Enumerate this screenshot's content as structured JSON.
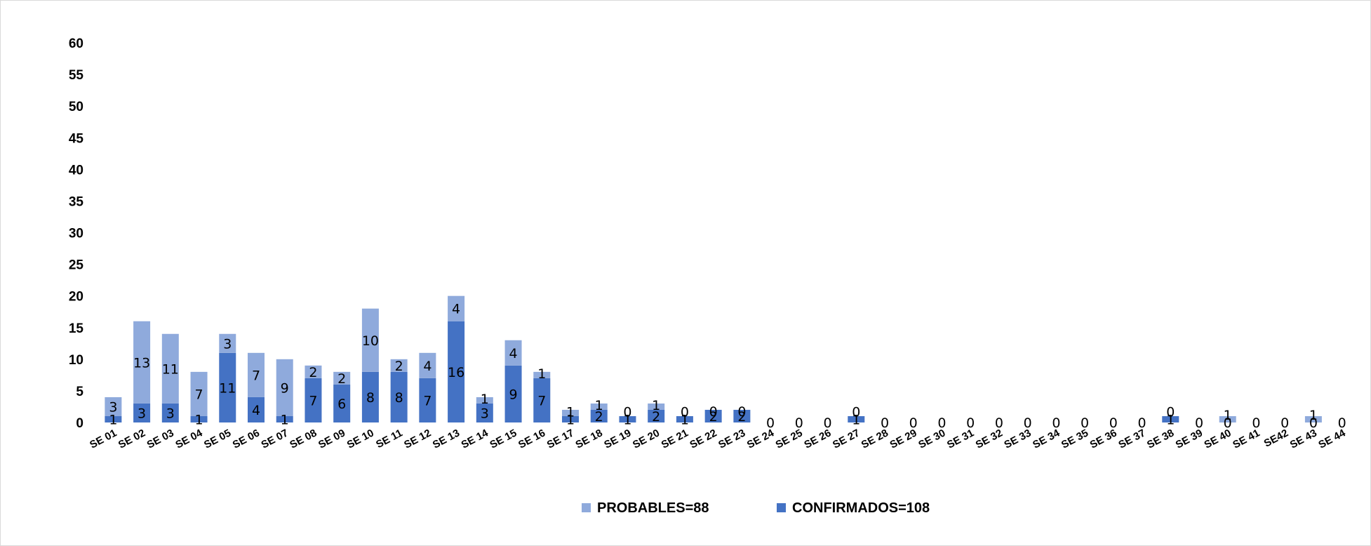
{
  "chart_data": {
    "type": "bar",
    "stacked": true,
    "categories": [
      "SE 01",
      "SE 02",
      "SE 03",
      "SE 04",
      "SE 05",
      "SE 06",
      "SE 07",
      "SE 08",
      "SE 09",
      "SE 10",
      "SE 11",
      "SE 12",
      "SE 13",
      "SE 14",
      "SE 15",
      "SE 16",
      "SE 17",
      "SE 18",
      "SE 19",
      "SE 20",
      "SE 21",
      "SE 22",
      "SE 23",
      "SE 24",
      "SE 25",
      "SE 26",
      "SE 27",
      "SE 28",
      "SE 29",
      "SE 30",
      "SE 31",
      "SE 32",
      "SE 33",
      "SE 34",
      "SE 35",
      "SE 36",
      "SE 37",
      "SE 38",
      "SE 39",
      "SE 40",
      "SE 41",
      "SE42",
      "SE 43",
      "SE 44"
    ],
    "series": [
      {
        "name": "CONFIRMADOS=108",
        "color": "#4472c4",
        "values": [
          1,
          3,
          3,
          1,
          11,
          4,
          1,
          7,
          6,
          8,
          8,
          7,
          16,
          3,
          9,
          7,
          1,
          2,
          1,
          2,
          1,
          2,
          2,
          0,
          0,
          0,
          1,
          0,
          0,
          0,
          0,
          0,
          0,
          0,
          0,
          0,
          0,
          1,
          0,
          0,
          0,
          0,
          0,
          0
        ]
      },
      {
        "name": "PROBABLES=88",
        "color": "#8faadc",
        "values": [
          3,
          13,
          11,
          7,
          3,
          7,
          9,
          2,
          2,
          10,
          2,
          4,
          4,
          1,
          4,
          1,
          1,
          1,
          0,
          1,
          0,
          0,
          0,
          null,
          null,
          null,
          0,
          null,
          null,
          null,
          null,
          null,
          null,
          null,
          null,
          null,
          null,
          0,
          null,
          1,
          null,
          null,
          1,
          null
        ]
      }
    ],
    "ylim": [
      0,
      60
    ],
    "yticks": [
      0,
      5,
      10,
      15,
      20,
      25,
      30,
      35,
      40,
      45,
      50,
      55,
      60
    ],
    "grid": false,
    "legend_position": "bottom"
  }
}
